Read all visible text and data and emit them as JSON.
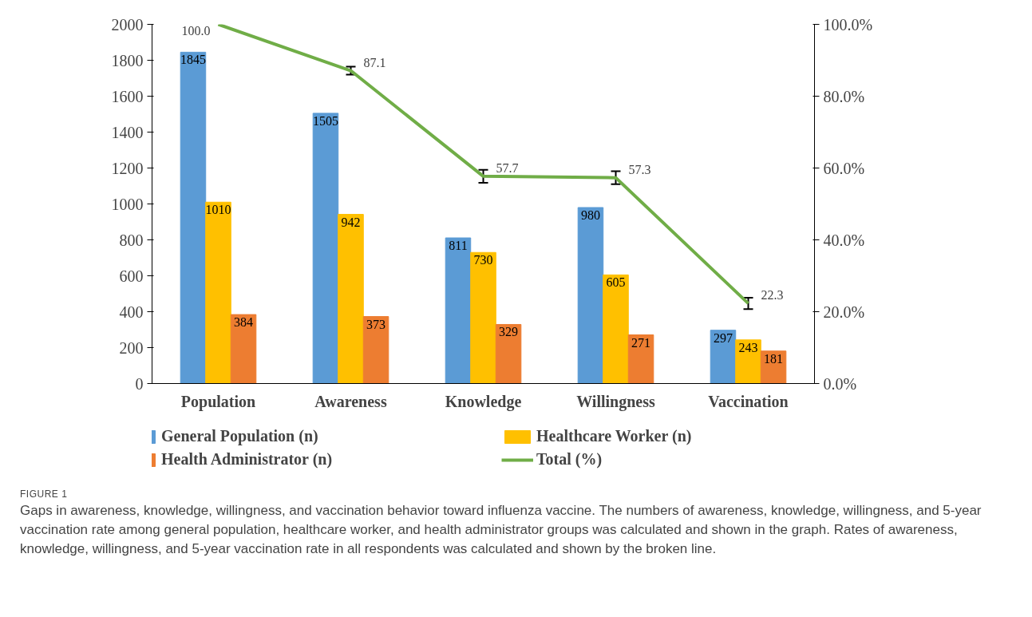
{
  "chart_data": {
    "type": "bar",
    "categories": [
      "Population",
      "Awareness",
      "Knowledge",
      "Willingness",
      "Vaccination"
    ],
    "series": [
      {
        "name": "General Population (n)",
        "color": "#5b9bd5",
        "values": [
          1845,
          1505,
          811,
          980,
          297
        ]
      },
      {
        "name": "Healthcare Worker (n)",
        "color": "#ffc000",
        "values": [
          1010,
          942,
          730,
          605,
          243
        ]
      },
      {
        "name": "Health Administrator (n)",
        "color": "#ed7d31",
        "values": [
          384,
          373,
          329,
          271,
          181
        ]
      },
      {
        "name": "Total (%)",
        "type": "line",
        "axis": "y2",
        "color": "#70ad47",
        "values": [
          100.0,
          87.1,
          57.7,
          57.3,
          22.3
        ],
        "value_labels": [
          "100.0",
          "87.1",
          "57.7",
          "57.3",
          "22.3"
        ],
        "errors": [
          null,
          1.1,
          1.8,
          1.8,
          1.6
        ]
      }
    ],
    "ylim": [
      0,
      2000
    ],
    "yticks": [
      0,
      200,
      400,
      600,
      800,
      1000,
      1200,
      1400,
      1600,
      1800,
      2000
    ],
    "y2lim": [
      0,
      100
    ],
    "y2ticks": [
      {
        "value": 0,
        "label": "0.0%"
      },
      {
        "value": 20,
        "label": "20.0%"
      },
      {
        "value": 40,
        "label": "40.0%"
      },
      {
        "value": 60,
        "label": "60.0%"
      },
      {
        "value": 80,
        "label": "80.0%"
      },
      {
        "value": 100,
        "label": "100.0%"
      }
    ],
    "data_labels": true,
    "legend": "bottom",
    "grid": false,
    "annotations": [
      "FIGURE 1",
      "Gaps in awareness, knowledge, willingness, and vaccination behavior toward influenza vaccine. The numbers of awareness, knowledge, willingness, and 5-year vaccination rate among general population, healthcare worker, and health administrator groups was calculated and shown in the graph. Rates of awareness, knowledge, willingness, and 5-year vaccination rate in all respondents was calculated and shown by the broken line."
    ]
  }
}
